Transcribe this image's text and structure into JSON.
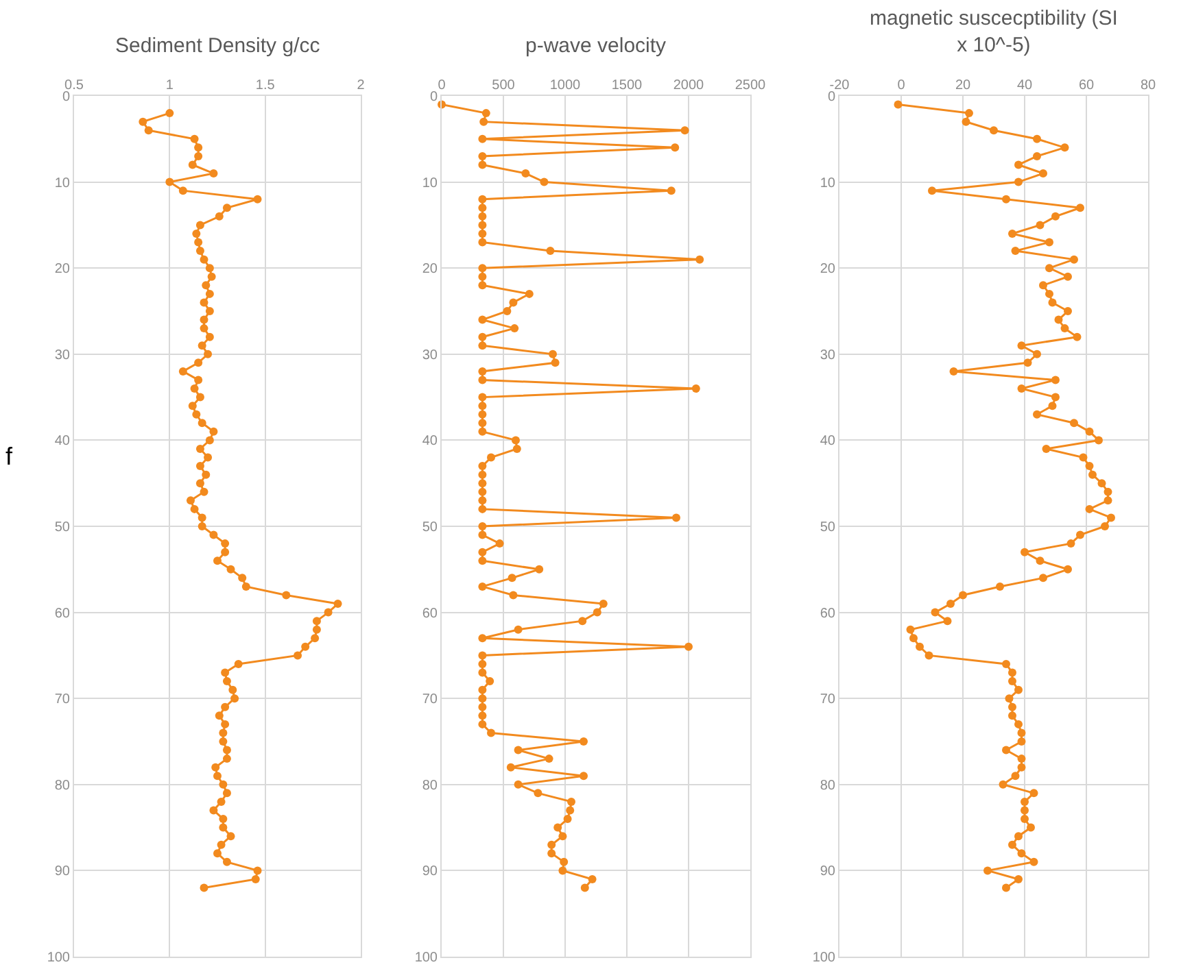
{
  "chart_data": [
    {
      "type": "line",
      "title": "Sediment Density g/cc",
      "ylabel": "f",
      "xlim": [
        0.5,
        2
      ],
      "xticks": [
        0.5,
        1,
        1.5,
        2
      ],
      "ylim": [
        100,
        0
      ],
      "yticks": [
        0,
        10,
        20,
        30,
        40,
        50,
        60,
        70,
        80,
        90,
        100
      ],
      "grid": true,
      "marker": "circle",
      "line_style": "solid",
      "series": [
        {
          "color": "#f28a1e",
          "x": [
            1.0,
            0.86,
            0.89,
            1.13,
            1.15,
            1.15,
            1.12,
            1.23,
            1.0,
            1.07,
            1.46,
            1.3,
            1.26,
            1.16,
            1.14,
            1.15,
            1.16,
            1.18,
            1.21,
            1.22,
            1.19,
            1.21,
            1.18,
            1.21,
            1.18,
            1.18,
            1.21,
            1.17,
            1.2,
            1.15,
            1.07,
            1.15,
            1.13,
            1.16,
            1.12,
            1.14,
            1.17,
            1.23,
            1.21,
            1.16,
            1.2,
            1.16,
            1.19,
            1.16,
            1.18,
            1.11,
            1.13,
            1.17,
            1.17,
            1.23,
            1.29,
            1.29,
            1.25,
            1.32,
            1.38,
            1.4,
            1.61,
            1.88,
            1.83,
            1.77,
            1.77,
            1.76,
            1.71,
            1.67,
            1.36,
            1.29,
            1.3,
            1.33,
            1.34,
            1.29,
            1.26,
            1.29,
            1.28,
            1.28,
            1.3,
            1.3,
            1.24,
            1.25,
            1.28,
            1.3,
            1.27,
            1.23,
            1.28,
            1.28,
            1.32,
            1.27,
            1.25,
            1.3,
            1.46,
            1.45,
            1.18
          ],
          "values": [
            2,
            3,
            4,
            5,
            6,
            7,
            8,
            9,
            10,
            11,
            12,
            13,
            14,
            15,
            16,
            17,
            18,
            19,
            20,
            21,
            22,
            23,
            24,
            25,
            26,
            27,
            28,
            29,
            30,
            31,
            32,
            33,
            34,
            35,
            36,
            37,
            38,
            39,
            40,
            41,
            42,
            43,
            44,
            45,
            46,
            47,
            48,
            49,
            50,
            51,
            52,
            53,
            54,
            55,
            56,
            57,
            58,
            59,
            60,
            61,
            62,
            63,
            64,
            65,
            66,
            67,
            68,
            69,
            70,
            71,
            72,
            73,
            74,
            75,
            76,
            77,
            78,
            79,
            80,
            81,
            82,
            83,
            84,
            85,
            86,
            87,
            88,
            89,
            90,
            91,
            92
          ]
        }
      ]
    },
    {
      "type": "line",
      "title": "p-wave velocity",
      "xlim": [
        0,
        2500
      ],
      "xticks": [
        0,
        500,
        1000,
        1500,
        2000,
        2500
      ],
      "ylim": [
        100,
        0
      ],
      "yticks": [
        0,
        10,
        20,
        30,
        40,
        50,
        60,
        70,
        80,
        90,
        100
      ],
      "grid": true,
      "marker": "circle",
      "line_style": "solid",
      "series": [
        {
          "color": "#f28a1e",
          "x": [
            0,
            360,
            340,
            1970,
            330,
            1890,
            330,
            330,
            680,
            830,
            1860,
            330,
            330,
            330,
            330,
            330,
            330,
            880,
            2090,
            330,
            330,
            330,
            710,
            580,
            530,
            330,
            590,
            330,
            330,
            900,
            920,
            330,
            330,
            2060,
            330,
            330,
            330,
            330,
            330,
            600,
            610,
            400,
            330,
            330,
            330,
            330,
            330,
            330,
            1900,
            330,
            330,
            470,
            330,
            330,
            790,
            570,
            330,
            580,
            1310,
            1260,
            1140,
            620,
            330,
            2000,
            330,
            330,
            330,
            390,
            330,
            330,
            330,
            330,
            330,
            400,
            1150,
            620,
            870,
            560,
            1150,
            620,
            780,
            1050,
            1040,
            1020,
            940,
            980,
            890,
            890,
            990,
            980,
            1220,
            1160
          ],
          "values": [
            1,
            2,
            3,
            4,
            5,
            6,
            7,
            8,
            9,
            10,
            11,
            12,
            13,
            14,
            15,
            16,
            17,
            18,
            19,
            20,
            21,
            22,
            23,
            24,
            25,
            26,
            27,
            28,
            29,
            30,
            31,
            32,
            33,
            34,
            35,
            36,
            37,
            38,
            39,
            40,
            41,
            42,
            43,
            44,
            45,
            46,
            47,
            48,
            49,
            50,
            51,
            52,
            53,
            54,
            55,
            56,
            57,
            58,
            59,
            60,
            61,
            62,
            63,
            64,
            65,
            66,
            67,
            68,
            69,
            70,
            71,
            72,
            73,
            74,
            75,
            76,
            77,
            78,
            79,
            80,
            81,
            82,
            83,
            84,
            85,
            86,
            87,
            88,
            89,
            90,
            91,
            92
          ]
        }
      ]
    },
    {
      "type": "line",
      "title": "magnetic suscecptibility (SI x 10^-5)",
      "xlim": [
        -20,
        80
      ],
      "xticks": [
        -20,
        0,
        20,
        40,
        60,
        80
      ],
      "ylim": [
        100,
        0
      ],
      "yticks": [
        0,
        10,
        20,
        30,
        40,
        50,
        60,
        70,
        80,
        90,
        100
      ],
      "grid": true,
      "marker": "circle",
      "line_style": "solid",
      "series": [
        {
          "color": "#f28a1e",
          "x": [
            -1,
            22,
            21,
            30,
            44,
            53,
            44,
            38,
            46,
            38,
            10,
            34,
            58,
            50,
            45,
            36,
            48,
            37,
            56,
            48,
            54,
            46,
            48,
            49,
            54,
            51,
            53,
            57,
            39,
            44,
            41,
            17,
            50,
            39,
            50,
            49,
            44,
            56,
            61,
            64,
            47,
            59,
            61,
            62,
            65,
            67,
            67,
            61,
            68,
            66,
            58,
            55,
            40,
            45,
            54,
            46,
            32,
            20,
            16,
            11,
            15,
            3,
            4,
            6,
            9,
            34,
            36,
            36,
            38,
            35,
            36,
            36,
            38,
            39,
            39,
            34,
            39,
            39,
            37,
            33,
            43,
            40,
            40,
            40,
            42,
            38,
            36,
            39,
            43,
            28,
            38,
            34
          ],
          "values": [
            1,
            2,
            3,
            4,
            5,
            6,
            7,
            8,
            9,
            10,
            11,
            12,
            13,
            14,
            15,
            16,
            17,
            18,
            19,
            20,
            21,
            22,
            23,
            24,
            25,
            26,
            27,
            28,
            29,
            30,
            31,
            32,
            33,
            34,
            35,
            36,
            37,
            38,
            39,
            40,
            41,
            42,
            43,
            44,
            45,
            46,
            47,
            48,
            49,
            50,
            51,
            52,
            53,
            54,
            55,
            56,
            57,
            58,
            59,
            60,
            61,
            62,
            63,
            64,
            65,
            66,
            67,
            68,
            69,
            70,
            71,
            72,
            73,
            74,
            75,
            76,
            77,
            78,
            79,
            80,
            81,
            82,
            83,
            84,
            85,
            86,
            87,
            88,
            89,
            90,
            91,
            92
          ]
        }
      ]
    }
  ]
}
